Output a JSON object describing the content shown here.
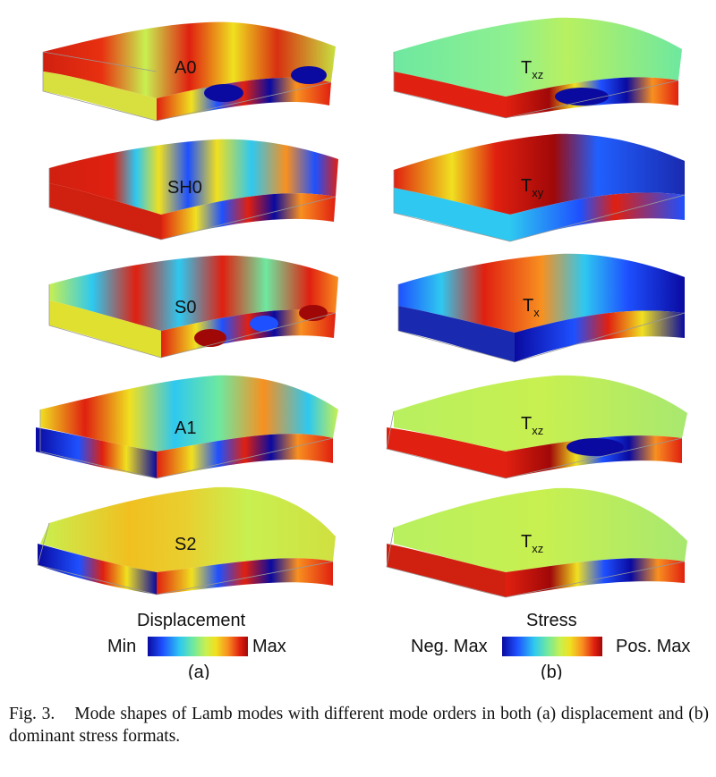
{
  "displacement_panel": {
    "modes": [
      "A0",
      "SH0",
      "S0",
      "A1",
      "S2"
    ],
    "legend_title": "Displacement",
    "legend_min": "Min",
    "legend_max": "Max",
    "sublabel": "(a)"
  },
  "stress_panel": {
    "stress_labels": [
      {
        "main": "T",
        "sub": "xz"
      },
      {
        "main": "T",
        "sub": "xy"
      },
      {
        "main": "T",
        "sub": "x"
      },
      {
        "main": "T",
        "sub": "xz"
      },
      {
        "main": "T",
        "sub": "xz"
      }
    ],
    "legend_title": "Stress",
    "legend_min": "Neg. Max",
    "legend_max": "Pos. Max",
    "sublabel": "(b)"
  },
  "caption": {
    "number": "Fig. 3.",
    "text": "Mode shapes of Lamb modes with different mode orders in both (a) displacement and (b) dominant stress formats."
  },
  "colormap": [
    "#0a0aa0",
    "#1e50ff",
    "#2ec8f0",
    "#6ee8a0",
    "#c8f050",
    "#f0e020",
    "#f89020",
    "#e02010",
    "#a00808"
  ]
}
